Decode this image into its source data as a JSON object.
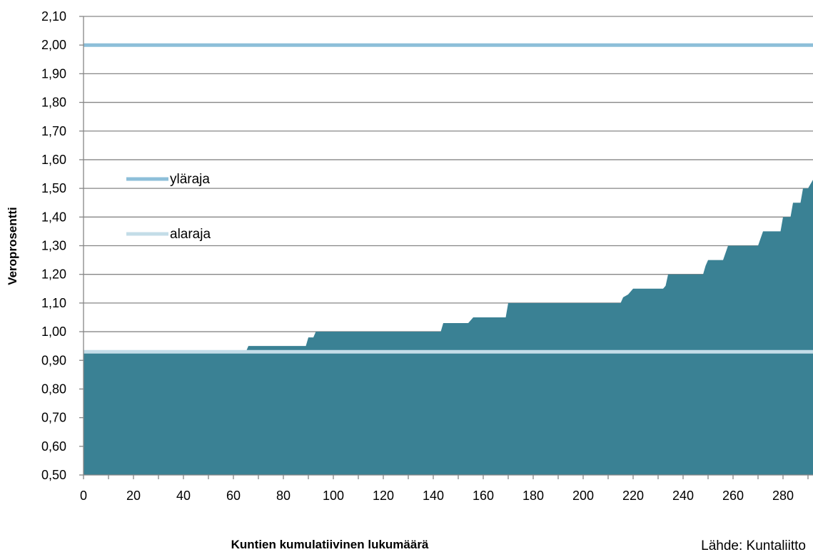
{
  "chart_data": {
    "type": "area",
    "title": "",
    "xlabel": "Kuntien kumulatiivinen lukumäärä",
    "ylabel": "Veroprosentti",
    "source": "Lähde: Kuntaliitto",
    "xlim": [
      0,
      292
    ],
    "ylim": [
      0.5,
      2.1
    ],
    "x_ticks": [
      0,
      20,
      40,
      60,
      80,
      100,
      120,
      140,
      160,
      180,
      200,
      220,
      240,
      260,
      280
    ],
    "y_ticks": [
      0.5,
      0.6,
      0.7,
      0.8,
      0.9,
      1.0,
      1.1,
      1.2,
      1.3,
      1.4,
      1.5,
      1.6,
      1.7,
      1.8,
      1.9,
      2.0,
      2.1
    ],
    "x_tick_labels": [
      "0",
      "20",
      "40",
      "60",
      "80",
      "100",
      "120",
      "140",
      "160",
      "180",
      "200",
      "220",
      "240",
      "260",
      "280"
    ],
    "y_tick_labels": [
      "0,50",
      "0,60",
      "0,70",
      "0,80",
      "0,90",
      "1,00",
      "1,10",
      "1,20",
      "1,30",
      "1,40",
      "1,50",
      "1,60",
      "1,70",
      "1,80",
      "1,90",
      "2,00",
      "2,10"
    ],
    "grid": "horizontal",
    "series": [
      {
        "kind": "area",
        "color": "#3a8194",
        "points": [
          [
            0,
            0.93
          ],
          [
            65,
            0.93
          ],
          [
            66,
            0.95
          ],
          [
            89,
            0.95
          ],
          [
            90,
            0.98
          ],
          [
            92,
            0.98
          ],
          [
            93,
            1.0
          ],
          [
            143,
            1.0
          ],
          [
            144,
            1.03
          ],
          [
            154,
            1.03
          ],
          [
            156,
            1.05
          ],
          [
            169,
            1.05
          ],
          [
            170,
            1.1
          ],
          [
            215,
            1.1
          ],
          [
            216,
            1.12
          ],
          [
            218,
            1.13
          ],
          [
            220,
            1.15
          ],
          [
            232,
            1.15
          ],
          [
            233,
            1.16
          ],
          [
            234,
            1.2
          ],
          [
            248,
            1.2
          ],
          [
            249,
            1.23
          ],
          [
            250,
            1.25
          ],
          [
            256,
            1.25
          ],
          [
            258,
            1.3
          ],
          [
            270,
            1.3
          ],
          [
            272,
            1.35
          ],
          [
            279,
            1.35
          ],
          [
            280,
            1.4
          ],
          [
            283,
            1.4
          ],
          [
            284,
            1.45
          ],
          [
            287,
            1.45
          ],
          [
            288,
            1.5
          ],
          [
            290,
            1.5
          ],
          [
            292,
            1.53
          ]
        ]
      },
      {
        "kind": "line",
        "name": "yläraja",
        "value": 2.0,
        "color": "#8dbfd9"
      },
      {
        "kind": "line",
        "name": "alaraja",
        "value": 0.93,
        "color": "#c4dde8"
      }
    ],
    "legend": {
      "position": "left",
      "items": [
        {
          "label": "yläraja",
          "color": "#8dbfd9"
        },
        {
          "label": "alaraja",
          "color": "#c4dde8"
        }
      ]
    }
  }
}
